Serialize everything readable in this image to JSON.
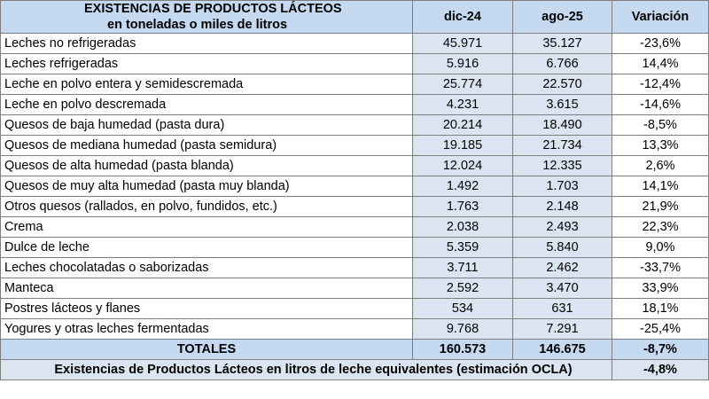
{
  "header": {
    "title_line1": "EXISTENCIAS DE PRODUCTOS LÁCTEOS",
    "title_line2": "en toneladas o miles de litros",
    "col_period1": "dic-24",
    "col_period2": "ago-25",
    "col_variation": "Variación"
  },
  "rows": [
    {
      "name": "Leches no refrigeradas",
      "dic24": "45.971",
      "ago25": "35.127",
      "var": "-23,6%"
    },
    {
      "name": "Leches refrigeradas",
      "dic24": "5.916",
      "ago25": "6.766",
      "var": "14,4%"
    },
    {
      "name": "Leche en polvo entera y semidescremada",
      "dic24": "25.774",
      "ago25": "22.570",
      "var": "-12,4%"
    },
    {
      "name": "Leche en polvo descremada",
      "dic24": "4.231",
      "ago25": "3.615",
      "var": "-14,6%"
    },
    {
      "name": "Quesos de baja humedad (pasta dura)",
      "dic24": "20.214",
      "ago25": "18.490",
      "var": "-8,5%"
    },
    {
      "name": "Quesos de mediana humedad (pasta semidura)",
      "dic24": "19.185",
      "ago25": "21.734",
      "var": "13,3%"
    },
    {
      "name": "Quesos de alta humedad (pasta blanda)",
      "dic24": "12.024",
      "ago25": "12.335",
      "var": "2,6%"
    },
    {
      "name": "Quesos de muy alta humedad (pasta muy blanda)",
      "dic24": "1.492",
      "ago25": "1.703",
      "var": "14,1%"
    },
    {
      "name": "Otros quesos (rallados, en polvo, fundidos, etc.)",
      "dic24": "1.763",
      "ago25": "2.148",
      "var": "21,9%"
    },
    {
      "name": "Crema",
      "dic24": "2.038",
      "ago25": "2.493",
      "var": "22,3%"
    },
    {
      "name": "Dulce de leche",
      "dic24": "5.359",
      "ago25": "5.840",
      "var": "9,0%"
    },
    {
      "name": "Leches chocolatadas o saborizadas",
      "dic24": "3.711",
      "ago25": "2.462",
      "var": "-33,7%"
    },
    {
      "name": "Manteca",
      "dic24": "2.592",
      "ago25": "3.470",
      "var": "33,9%"
    },
    {
      "name": "Postres lácteos y flanes",
      "dic24": "534",
      "ago25": "631",
      "var": "18,1%"
    },
    {
      "name": "Yogures y otras leches fermentadas",
      "dic24": "9.768",
      "ago25": "7.291",
      "var": "-25,4%"
    }
  ],
  "totals": {
    "label": "TOTALES",
    "dic24": "160.573",
    "ago25": "146.675",
    "var": "-8,7%"
  },
  "equivalent": {
    "label": "Existencias de Productos Lácteos en litros de leche equivalentes (estimación OCLA)",
    "var": "-4,8%"
  },
  "colors": {
    "header_bg": "#c5d9f1",
    "value_bg": "#dbe5f1",
    "border": "#7f7f7f"
  }
}
